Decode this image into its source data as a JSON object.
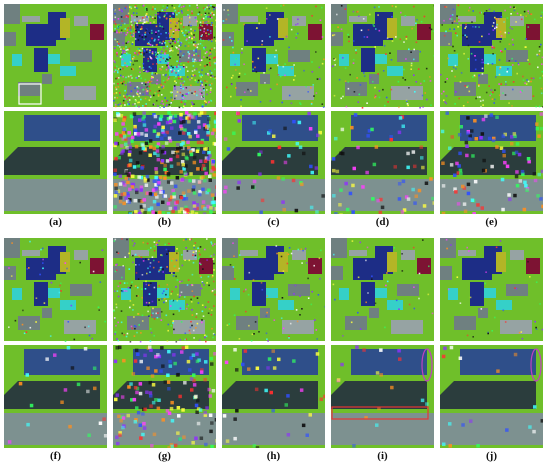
{
  "captions": [
    "(a)",
    "(b)",
    "(c)",
    "(d)",
    "(e)",
    "(f)",
    "(g)",
    "(h)",
    "(i)",
    "(j)"
  ],
  "colors": {
    "background_field": "#6fbf2a",
    "tile_gray": "#6f8080",
    "tile_gray_light": "#96a3a3",
    "navy": "#1d2d86",
    "cyan": "#35d0c8",
    "olive": "#b3b526",
    "maroon": "#7d1333",
    "zoom_blue": "#2f4f8a",
    "zoom_dark": "#2b3d3d",
    "zoom_gray": "#7d9190",
    "highlight_rect": "#e53535",
    "highlight_ellipse": "#c040c0",
    "selection_box": "#ffffff"
  },
  "panels": [
    {
      "id": "a",
      "noise": 0,
      "selection_box": true,
      "red_rect": false,
      "ellipse": false
    },
    {
      "id": "b",
      "noise": 1,
      "selection_box": false,
      "red_rect": false,
      "ellipse": false
    },
    {
      "id": "c",
      "noise": 0.12,
      "selection_box": false,
      "red_rect": false,
      "ellipse": false
    },
    {
      "id": "d",
      "noise": 0.15,
      "selection_box": false,
      "red_rect": false,
      "ellipse": false
    },
    {
      "id": "e",
      "noise": 0.25,
      "selection_box": false,
      "red_rect": false,
      "ellipse": false
    },
    {
      "id": "f",
      "noise": 0.05,
      "selection_box": false,
      "red_rect": false,
      "ellipse": false
    },
    {
      "id": "g",
      "noise": 0.35,
      "selection_box": false,
      "red_rect": false,
      "ellipse": false
    },
    {
      "id": "h",
      "noise": 0.08,
      "selection_box": false,
      "red_rect": false,
      "ellipse": false
    },
    {
      "id": "i",
      "noise": 0.04,
      "selection_box": false,
      "red_rect": true,
      "ellipse": true
    },
    {
      "id": "j",
      "noise": 0.04,
      "selection_box": false,
      "red_rect": false,
      "ellipse": true
    }
  ]
}
